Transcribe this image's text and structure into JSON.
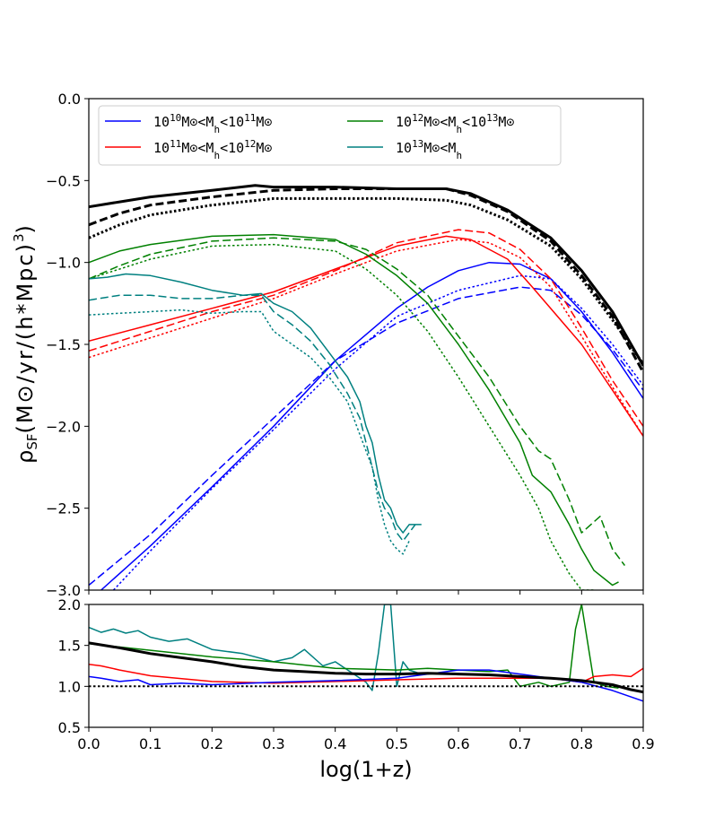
{
  "chart_data": [
    {
      "type": "line",
      "panel": "main",
      "xlabel": "log(1+z)",
      "ylabel": "ρ_SF(M⊙/yr/(h*Mpc)^3)",
      "ylabel_parts": {
        "rho": "ρ",
        "sub": "SF",
        "rest": "(M⊙/yr/(h*Mpc)",
        "sup": "3",
        "close": ")"
      },
      "xlim": [
        0.0,
        0.9
      ],
      "ylim": [
        -3.0,
        0.0
      ],
      "xticks": [
        "0.0",
        "0.1",
        "0.2",
        "0.3",
        "0.4",
        "0.5",
        "0.6",
        "0.7",
        "0.8",
        "0.9"
      ],
      "yticks": [
        "−3.0",
        "−2.5",
        "−2.0",
        "−1.5",
        "−1.0",
        "−0.5",
        "0.0"
      ],
      "legend": {
        "placement": "top-left",
        "entries": [
          {
            "color": "#0000ff",
            "parts": [
              [
                "10",
                ""
              ],
              [
                "10",
                "sup"
              ],
              [
                "M⊙<M",
                ""
              ],
              [
                "h",
                "sub"
              ],
              [
                "<10",
                ""
              ],
              [
                "11",
                "sup"
              ],
              [
                "M⊙",
                ""
              ]
            ]
          },
          {
            "color": "#008000",
            "parts": [
              [
                "10",
                ""
              ],
              [
                "12",
                "sup"
              ],
              [
                "M⊙<M",
                ""
              ],
              [
                "h",
                "sub"
              ],
              [
                "<10",
                ""
              ],
              [
                "13",
                "sup"
              ],
              [
                "M⊙",
                ""
              ]
            ]
          },
          {
            "color": "#ff0000",
            "parts": [
              [
                "10",
                ""
              ],
              [
                "11",
                "sup"
              ],
              [
                "M⊙<M",
                ""
              ],
              [
                "h",
                "sub"
              ],
              [
                "<10",
                ""
              ],
              [
                "12",
                "sup"
              ],
              [
                "M⊙",
                ""
              ]
            ]
          },
          {
            "color": "#008080",
            "parts": [
              [
                "10",
                ""
              ],
              [
                "13",
                "sup"
              ],
              [
                "M⊙<M",
                ""
              ],
              [
                "h",
                "sub"
              ]
            ]
          }
        ]
      },
      "series": [
        {
          "name": "total solid",
          "color": "#000000",
          "style": "solid",
          "width": 3,
          "x": [
            0.0,
            0.05,
            0.1,
            0.2,
            0.27,
            0.3,
            0.4,
            0.5,
            0.58,
            0.62,
            0.68,
            0.75,
            0.8,
            0.85,
            0.9
          ],
          "y": [
            -0.66,
            -0.63,
            -0.6,
            -0.56,
            -0.53,
            -0.54,
            -0.54,
            -0.55,
            -0.55,
            -0.58,
            -0.68,
            -0.85,
            -1.05,
            -1.3,
            -1.63
          ]
        },
        {
          "name": "total dashed",
          "color": "#000000",
          "style": "dashed",
          "width": 3,
          "x": [
            0.0,
            0.05,
            0.1,
            0.2,
            0.3,
            0.4,
            0.5,
            0.58,
            0.62,
            0.68,
            0.75,
            0.8,
            0.85,
            0.9
          ],
          "y": [
            -0.77,
            -0.7,
            -0.65,
            -0.6,
            -0.56,
            -0.55,
            -0.55,
            -0.55,
            -0.59,
            -0.69,
            -0.87,
            -1.08,
            -1.33,
            -1.67
          ]
        },
        {
          "name": "total dotted",
          "color": "#000000",
          "style": "dotted",
          "width": 3,
          "x": [
            0.0,
            0.05,
            0.1,
            0.2,
            0.3,
            0.4,
            0.5,
            0.58,
            0.62,
            0.68,
            0.75,
            0.8,
            0.85,
            0.9
          ],
          "y": [
            -0.85,
            -0.77,
            -0.71,
            -0.65,
            -0.61,
            -0.61,
            -0.61,
            -0.62,
            -0.65,
            -0.74,
            -0.9,
            -1.1,
            -1.35,
            -1.62
          ]
        },
        {
          "name": "blue solid",
          "color": "#0000ff",
          "style": "solid",
          "width": 1.5,
          "x": [
            0.02,
            0.1,
            0.2,
            0.3,
            0.4,
            0.5,
            0.55,
            0.6,
            0.65,
            0.7,
            0.75,
            0.8,
            0.85,
            0.9
          ],
          "y": [
            -3.0,
            -2.73,
            -2.37,
            -2.0,
            -1.6,
            -1.28,
            -1.15,
            -1.05,
            -1.0,
            -1.01,
            -1.1,
            -1.3,
            -1.55,
            -1.83
          ]
        },
        {
          "name": "blue dashed",
          "color": "#0000ff",
          "style": "dashed",
          "width": 1.5,
          "x": [
            0.0,
            0.1,
            0.2,
            0.3,
            0.4,
            0.5,
            0.6,
            0.7,
            0.75,
            0.8,
            0.85,
            0.9
          ],
          "y": [
            -2.97,
            -2.66,
            -2.3,
            -1.95,
            -1.6,
            -1.37,
            -1.22,
            -1.15,
            -1.17,
            -1.32,
            -1.53,
            -1.78
          ]
        },
        {
          "name": "blue dotted",
          "color": "#0000ff",
          "style": "dotted",
          "width": 1.5,
          "x": [
            0.04,
            0.1,
            0.2,
            0.3,
            0.4,
            0.5,
            0.6,
            0.7,
            0.75,
            0.8,
            0.85,
            0.9
          ],
          "y": [
            -3.0,
            -2.76,
            -2.38,
            -2.02,
            -1.65,
            -1.33,
            -1.17,
            -1.08,
            -1.1,
            -1.28,
            -1.5,
            -1.75
          ]
        },
        {
          "name": "red solid",
          "color": "#ff0000",
          "style": "solid",
          "width": 1.5,
          "x": [
            0.0,
            0.1,
            0.2,
            0.3,
            0.4,
            0.5,
            0.58,
            0.62,
            0.68,
            0.72,
            0.8,
            0.85,
            0.9
          ],
          "y": [
            -1.48,
            -1.38,
            -1.28,
            -1.18,
            -1.04,
            -0.9,
            -0.84,
            -0.86,
            -0.98,
            -1.15,
            -1.5,
            -1.78,
            -2.06
          ]
        },
        {
          "name": "red dashed",
          "color": "#ff0000",
          "style": "dashed",
          "width": 1.5,
          "x": [
            0.0,
            0.1,
            0.2,
            0.3,
            0.4,
            0.5,
            0.6,
            0.65,
            0.7,
            0.75,
            0.8,
            0.85,
            0.9
          ],
          "y": [
            -1.54,
            -1.42,
            -1.3,
            -1.2,
            -1.05,
            -0.88,
            -0.8,
            -0.82,
            -0.92,
            -1.1,
            -1.4,
            -1.72,
            -2.0
          ]
        },
        {
          "name": "red dotted",
          "color": "#ff0000",
          "style": "dotted",
          "width": 1.5,
          "x": [
            0.0,
            0.1,
            0.2,
            0.3,
            0.4,
            0.5,
            0.6,
            0.65,
            0.7,
            0.75,
            0.8,
            0.85,
            0.9
          ],
          "y": [
            -1.58,
            -1.46,
            -1.34,
            -1.22,
            -1.07,
            -0.93,
            -0.86,
            -0.88,
            -0.97,
            -1.15,
            -1.45,
            -1.76,
            -2.06
          ]
        },
        {
          "name": "green solid",
          "color": "#008000",
          "style": "solid",
          "width": 1.5,
          "x": [
            0.0,
            0.05,
            0.1,
            0.2,
            0.3,
            0.4,
            0.45,
            0.5,
            0.55,
            0.6,
            0.65,
            0.7,
            0.72,
            0.75,
            0.78,
            0.8,
            0.82,
            0.85,
            0.86
          ],
          "y": [
            -1.0,
            -0.93,
            -0.89,
            -0.84,
            -0.83,
            -0.86,
            -0.95,
            -1.08,
            -1.25,
            -1.5,
            -1.78,
            -2.1,
            -2.3,
            -2.4,
            -2.6,
            -2.75,
            -2.88,
            -2.97,
            -2.95
          ]
        },
        {
          "name": "green dashed",
          "color": "#008000",
          "style": "dashed",
          "width": 1.5,
          "x": [
            0.0,
            0.05,
            0.1,
            0.2,
            0.3,
            0.4,
            0.45,
            0.5,
            0.55,
            0.6,
            0.65,
            0.7,
            0.73,
            0.75,
            0.78,
            0.8,
            0.83,
            0.85,
            0.87
          ],
          "y": [
            -1.1,
            -1.02,
            -0.95,
            -0.87,
            -0.85,
            -0.87,
            -0.92,
            -1.04,
            -1.2,
            -1.45,
            -1.7,
            -2.0,
            -2.15,
            -2.2,
            -2.45,
            -2.65,
            -2.55,
            -2.75,
            -2.85
          ]
        },
        {
          "name": "green dotted",
          "color": "#008000",
          "style": "dotted",
          "width": 1.5,
          "x": [
            0.0,
            0.05,
            0.1,
            0.2,
            0.3,
            0.4,
            0.45,
            0.5,
            0.55,
            0.6,
            0.65,
            0.7,
            0.73,
            0.75,
            0.78,
            0.8,
            0.82
          ],
          "y": [
            -1.1,
            -1.04,
            -0.98,
            -0.9,
            -0.89,
            -0.93,
            -1.04,
            -1.2,
            -1.42,
            -1.7,
            -2.0,
            -2.3,
            -2.5,
            -2.7,
            -2.9,
            -3.0,
            -3.0
          ]
        },
        {
          "name": "teal solid",
          "color": "#008080",
          "style": "solid",
          "width": 1.5,
          "x": [
            0.0,
            0.03,
            0.06,
            0.1,
            0.15,
            0.2,
            0.25,
            0.28,
            0.3,
            0.33,
            0.36,
            0.39,
            0.42,
            0.44,
            0.45,
            0.46,
            0.47,
            0.48,
            0.49,
            0.5,
            0.51,
            0.52,
            0.54
          ],
          "y": [
            -1.1,
            -1.09,
            -1.07,
            -1.08,
            -1.12,
            -1.17,
            -1.2,
            -1.19,
            -1.25,
            -1.3,
            -1.4,
            -1.55,
            -1.7,
            -1.85,
            -2.0,
            -2.1,
            -2.3,
            -2.45,
            -2.5,
            -2.6,
            -2.65,
            -2.6,
            -2.6
          ]
        },
        {
          "name": "teal dashed",
          "color": "#008080",
          "style": "dashed",
          "width": 1.5,
          "x": [
            0.0,
            0.05,
            0.1,
            0.15,
            0.2,
            0.25,
            0.28,
            0.3,
            0.33,
            0.36,
            0.39,
            0.42,
            0.44,
            0.45,
            0.46,
            0.47,
            0.48,
            0.49,
            0.5,
            0.51,
            0.52,
            0.53
          ],
          "y": [
            -1.23,
            -1.2,
            -1.2,
            -1.22,
            -1.22,
            -1.2,
            -1.2,
            -1.3,
            -1.38,
            -1.48,
            -1.62,
            -1.8,
            -1.95,
            -2.1,
            -2.25,
            -2.4,
            -2.5,
            -2.55,
            -2.65,
            -2.7,
            -2.65,
            -2.6
          ]
        },
        {
          "name": "teal dotted",
          "color": "#008080",
          "style": "dotted",
          "width": 1.5,
          "x": [
            0.0,
            0.05,
            0.1,
            0.15,
            0.2,
            0.25,
            0.28,
            0.3,
            0.33,
            0.36,
            0.39,
            0.42,
            0.44,
            0.46,
            0.47,
            0.48,
            0.49,
            0.5,
            0.51,
            0.52
          ],
          "y": [
            -1.32,
            -1.31,
            -1.3,
            -1.29,
            -1.31,
            -1.3,
            -1.3,
            -1.42,
            -1.5,
            -1.58,
            -1.7,
            -1.85,
            -2.05,
            -2.25,
            -2.45,
            -2.6,
            -2.7,
            -2.75,
            -2.78,
            -2.7
          ]
        }
      ]
    },
    {
      "type": "line",
      "panel": "ratio",
      "xlabel": "log(1+z)",
      "ylabel": "",
      "xlim": [
        0.0,
        0.9
      ],
      "ylim": [
        0.5,
        2.0
      ],
      "xticks": [
        "0.0",
        "0.1",
        "0.2",
        "0.3",
        "0.4",
        "0.5",
        "0.6",
        "0.7",
        "0.8",
        "0.9"
      ],
      "yticks": [
        "0.5",
        "1.0",
        "1.5",
        "2.0"
      ],
      "series": [
        {
          "name": "teal ratio",
          "color": "#008080",
          "style": "solid",
          "width": 1.5,
          "x": [
            0.0,
            0.02,
            0.04,
            0.06,
            0.08,
            0.1,
            0.13,
            0.16,
            0.2,
            0.25,
            0.3,
            0.33,
            0.35,
            0.38,
            0.4,
            0.43,
            0.45,
            0.46,
            0.47,
            0.48,
            0.49,
            0.5,
            0.51,
            0.52,
            0.54
          ],
          "y": [
            1.72,
            1.66,
            1.7,
            1.65,
            1.68,
            1.6,
            1.55,
            1.58,
            1.45,
            1.4,
            1.3,
            1.35,
            1.45,
            1.25,
            1.3,
            1.15,
            1.05,
            0.95,
            1.4,
            2.0,
            2.0,
            1.0,
            1.3,
            1.2,
            1.15
          ]
        },
        {
          "name": "green ratio",
          "color": "#008000",
          "style": "solid",
          "width": 1.5,
          "x": [
            0.0,
            0.1,
            0.2,
            0.3,
            0.4,
            0.5,
            0.55,
            0.6,
            0.65,
            0.68,
            0.7,
            0.73,
            0.75,
            0.78,
            0.79,
            0.8,
            0.82,
            0.84,
            0.86
          ],
          "y": [
            1.52,
            1.44,
            1.36,
            1.3,
            1.22,
            1.2,
            1.22,
            1.2,
            1.18,
            1.2,
            1.0,
            1.05,
            1.0,
            1.05,
            1.7,
            2.0,
            1.05,
            1.0,
            0.98
          ]
        },
        {
          "name": "red ratio",
          "color": "#ff0000",
          "style": "solid",
          "width": 1.5,
          "x": [
            0.0,
            0.02,
            0.05,
            0.1,
            0.2,
            0.3,
            0.4,
            0.5,
            0.6,
            0.7,
            0.75,
            0.8,
            0.82,
            0.85,
            0.88,
            0.9
          ],
          "y": [
            1.27,
            1.25,
            1.2,
            1.13,
            1.06,
            1.04,
            1.06,
            1.08,
            1.1,
            1.1,
            1.1,
            1.05,
            1.12,
            1.14,
            1.12,
            1.22
          ]
        },
        {
          "name": "blue ratio",
          "color": "#0000ff",
          "style": "solid",
          "width": 1.5,
          "x": [
            0.0,
            0.02,
            0.05,
            0.08,
            0.1,
            0.15,
            0.2,
            0.3,
            0.4,
            0.5,
            0.6,
            0.65,
            0.7,
            0.75,
            0.8,
            0.85,
            0.9
          ],
          "y": [
            1.12,
            1.1,
            1.06,
            1.08,
            1.02,
            1.04,
            1.02,
            1.05,
            1.07,
            1.1,
            1.2,
            1.2,
            1.15,
            1.1,
            1.05,
            0.95,
            0.82
          ]
        },
        {
          "name": "black ratio",
          "color": "#000000",
          "style": "solid",
          "width": 3,
          "x": [
            0.0,
            0.05,
            0.1,
            0.15,
            0.2,
            0.25,
            0.3,
            0.35,
            0.4,
            0.45,
            0.5,
            0.55,
            0.6,
            0.65,
            0.7,
            0.75,
            0.8,
            0.85,
            0.88,
            0.9
          ],
          "y": [
            1.53,
            1.47,
            1.4,
            1.35,
            1.3,
            1.24,
            1.2,
            1.18,
            1.16,
            1.15,
            1.15,
            1.16,
            1.15,
            1.14,
            1.12,
            1.1,
            1.07,
            1.02,
            0.96,
            0.93
          ]
        },
        {
          "name": "unity",
          "color": "#000000",
          "style": "dotted",
          "width": 2,
          "x": [
            0.0,
            0.9
          ],
          "y": [
            1.0,
            1.0
          ]
        }
      ]
    }
  ]
}
